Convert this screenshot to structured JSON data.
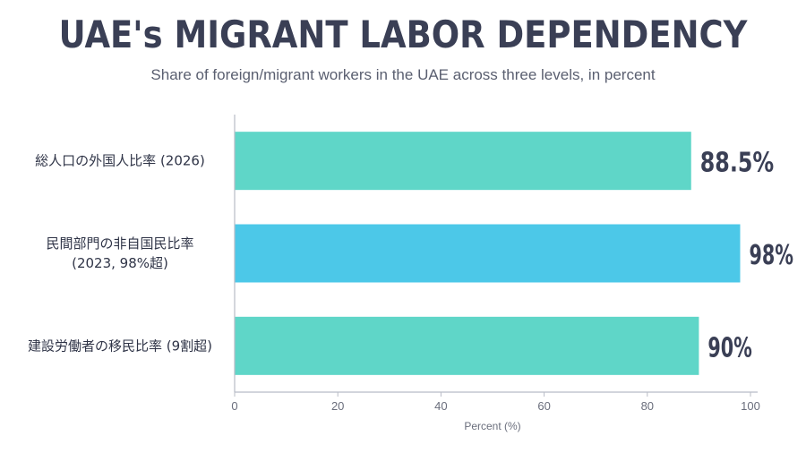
{
  "chart_data": {
    "type": "bar",
    "orientation": "horizontal",
    "title": "UAE's MIGRANT LABOR DEPENDENCY",
    "subtitle": "Share of foreign/migrant workers in the UAE across three levels, in percent",
    "xlabel": "Percent (%)",
    "ylabel": "",
    "xlim": [
      0,
      100
    ],
    "x_ticks": [
      "0",
      "20",
      "40",
      "60",
      "80",
      "100"
    ],
    "grid": false,
    "categories": [
      [
        "総人口の外国人比率 (2026)"
      ],
      [
        "民間部門の非自国民比率",
        "(2023, 98%超)"
      ],
      [
        "建設労働者の移民比率 (9割超)"
      ]
    ],
    "values": [
      88.5,
      98,
      90
    ],
    "value_labels": [
      "88.5%",
      "98%",
      "90%"
    ],
    "colors": [
      "#5fd6c8",
      "#4cc8e8",
      "#5fd6c8"
    ]
  }
}
